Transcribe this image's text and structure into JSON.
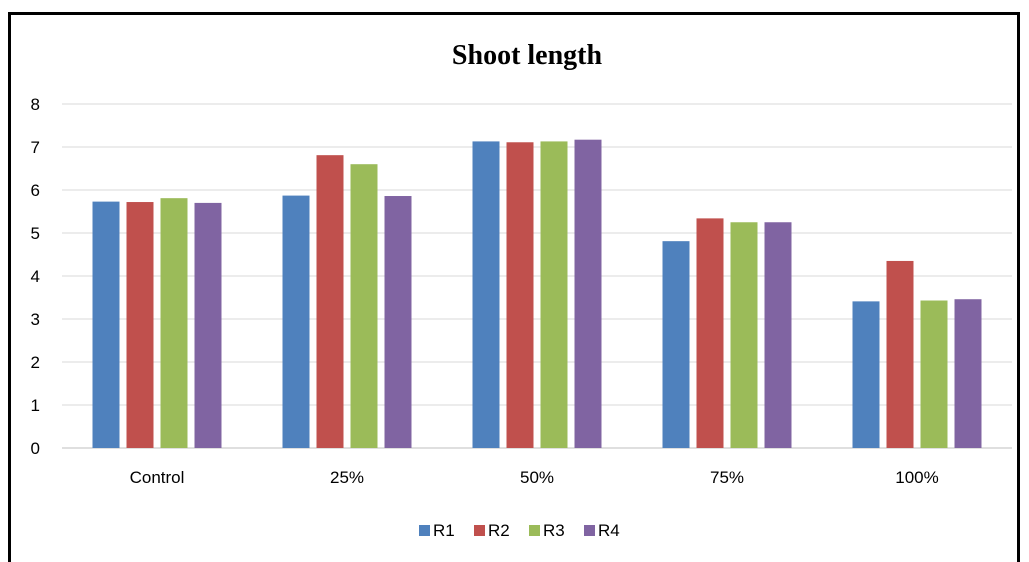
{
  "chart_data": {
    "type": "bar",
    "title": "Shoot length",
    "xlabel": "",
    "ylabel": "",
    "categories": [
      "Control",
      "25%",
      "50%",
      "75%",
      "100%"
    ],
    "series": [
      {
        "name": "R1",
        "color": "#4F81BD",
        "values": [
          5.73,
          5.87,
          7.13,
          4.81,
          3.41
        ]
      },
      {
        "name": "R2",
        "color": "#C0504D",
        "values": [
          5.72,
          6.81,
          7.11,
          5.34,
          4.35
        ]
      },
      {
        "name": "R3",
        "color": "#9BBB59",
        "values": [
          5.81,
          6.6,
          7.13,
          5.25,
          3.43
        ]
      },
      {
        "name": "R4",
        "color": "#8064A2",
        "values": [
          5.7,
          5.86,
          7.17,
          5.25,
          3.46
        ]
      }
    ],
    "ylim": [
      0,
      8
    ],
    "yticks": [
      0,
      1,
      2,
      3,
      4,
      5,
      6,
      7,
      8
    ],
    "grid": true,
    "legend_position": "bottom"
  }
}
